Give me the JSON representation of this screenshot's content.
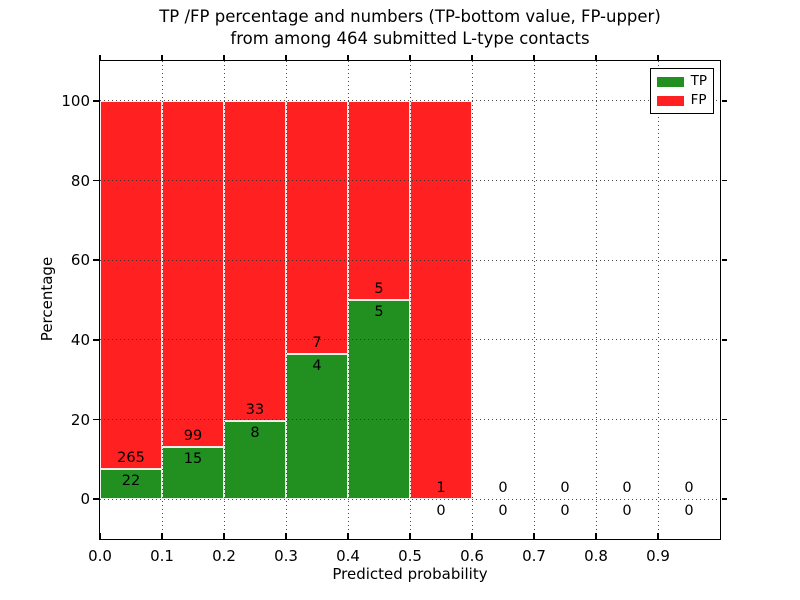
{
  "chart_data": {
    "type": "bar",
    "variant": "stacked-percentage-histogram",
    "title": "TP /FP percentage and numbers (TP-bottom value, FP-upper)\nfrom among 464 submitted L-type contacts",
    "xlabel": "Predicted probability",
    "ylabel": "Percentage",
    "total_contacts": 464,
    "bin_start": [
      0.0,
      0.1,
      0.2,
      0.3,
      0.4,
      0.5,
      0.6,
      0.7,
      0.8,
      0.9
    ],
    "bin_width": 0.1,
    "series": [
      {
        "name": "TP",
        "color": "#219021",
        "counts": [
          22,
          15,
          8,
          4,
          5,
          0,
          0,
          0,
          0,
          0
        ]
      },
      {
        "name": "FP",
        "color": "#ff2121",
        "counts": [
          265,
          99,
          33,
          7,
          5,
          1,
          0,
          0,
          0,
          0
        ]
      }
    ],
    "tp_percent_of_bin": [
      7.7,
      13.2,
      19.5,
      36.4,
      50.0,
      0.0,
      null,
      null,
      null,
      null
    ],
    "bar_total_percent_when_nonempty": 100,
    "xticks": [
      "0.0",
      "0.1",
      "0.2",
      "0.3",
      "0.4",
      "0.5",
      "0.6",
      "0.7",
      "0.8",
      "0.9"
    ],
    "yticks": [
      0,
      20,
      40,
      60,
      80,
      100
    ],
    "xlim": [
      0,
      1
    ],
    "ylim": [
      -10,
      110
    ],
    "grid": "dotted",
    "legend": {
      "position": "upper-right",
      "entries": [
        "TP",
        "FP"
      ]
    },
    "frame_color": "#000000",
    "background": "#ffffff",
    "label_rule": "FP count above green/red boundary, TP count below it"
  }
}
